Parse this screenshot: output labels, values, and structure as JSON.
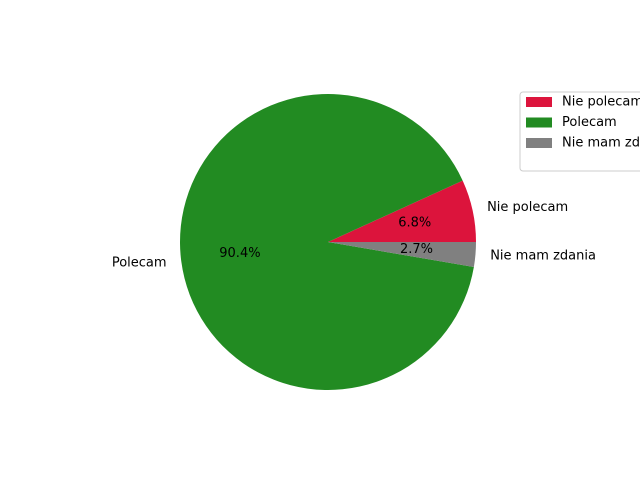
{
  "chart_data": {
    "type": "pie",
    "categories": [
      "Nie polecam",
      "Polecam",
      "Nie mam zdania"
    ],
    "values": [
      6.8,
      90.4,
      2.7
    ],
    "value_labels": [
      "6.8%",
      "90.4%",
      "2.7%"
    ],
    "colors": [
      "#dc143c",
      "#228b22",
      "#808080"
    ],
    "legend": {
      "position": "top-right",
      "entries": [
        "Nie polecam",
        "Polecam",
        "Nie mam zdania"
      ]
    }
  }
}
